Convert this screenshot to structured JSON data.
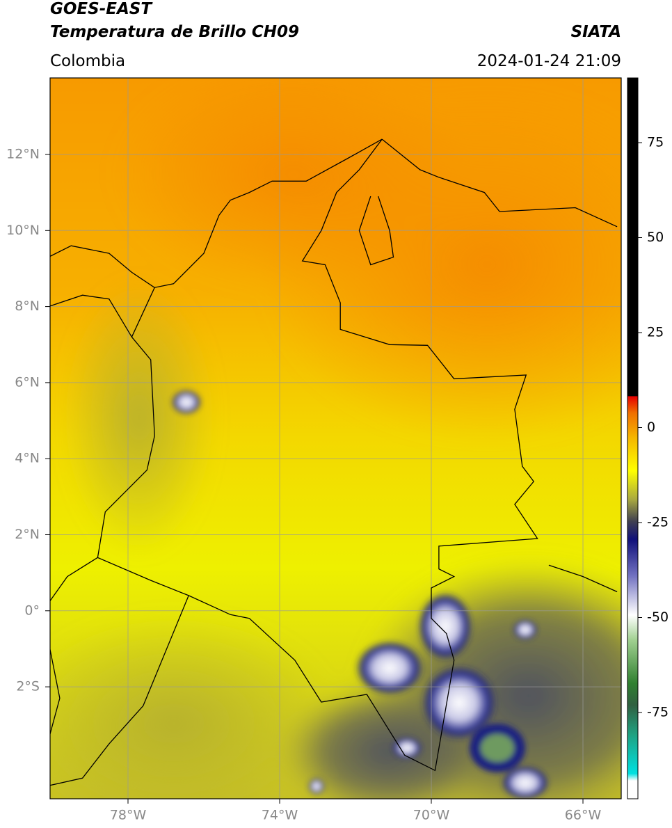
{
  "header": {
    "satellite": "GOES-EAST",
    "product": "Temperatura de Brillo CH09",
    "agency": "SIATA",
    "region": "Colombia",
    "timestamp": "2024-01-24 21:09"
  },
  "map": {
    "longitude_ticks": [
      "78°W",
      "74°W",
      "70°W",
      "66°W"
    ],
    "latitude_ticks": [
      "12°N",
      "10°N",
      "8°N",
      "6°N",
      "4°N",
      "2°N",
      "0°",
      "2°S"
    ]
  },
  "colorbar": {
    "ticks": [
      75,
      50,
      25,
      0,
      -25,
      -50,
      -75
    ]
  }
}
